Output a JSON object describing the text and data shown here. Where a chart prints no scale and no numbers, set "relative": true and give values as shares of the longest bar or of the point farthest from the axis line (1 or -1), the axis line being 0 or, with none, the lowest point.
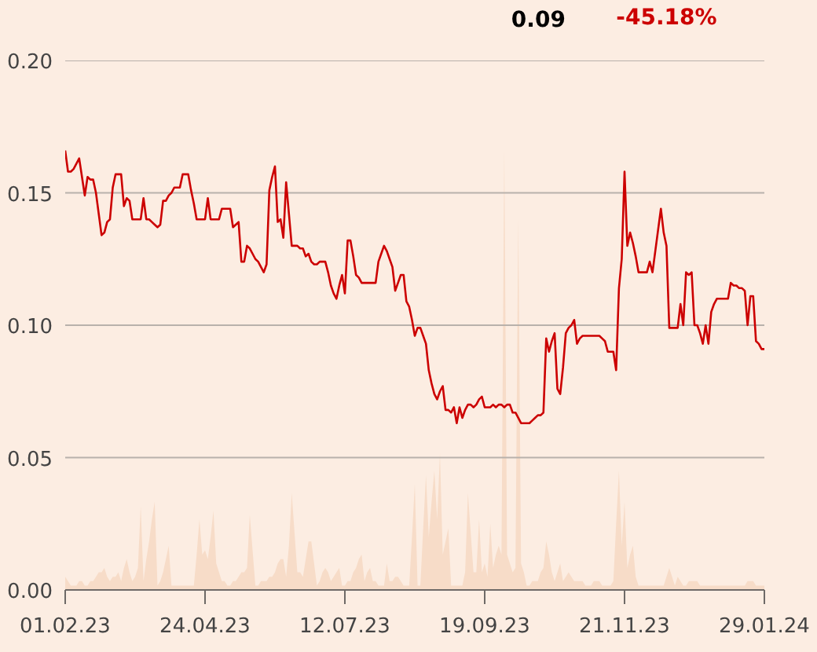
{
  "chart_data": [
    {
      "type": "line",
      "annotations": [
        "0.09",
        "-45.18%"
      ],
      "categories": [
        "01.02.23",
        null,
        null,
        null,
        null,
        null,
        null,
        null,
        null,
        null,
        null,
        null,
        null,
        null,
        null,
        null,
        null,
        null,
        null,
        null,
        null,
        null,
        null,
        null,
        null,
        null,
        null,
        null,
        null,
        null,
        null,
        null,
        null,
        null,
        null,
        null,
        null,
        null,
        null,
        null,
        null,
        null,
        null,
        null,
        null,
        null,
        null,
        null,
        null,
        null,
        "24.04.23",
        null,
        null,
        null,
        null,
        null,
        null,
        null,
        null,
        null,
        null,
        null,
        null,
        null,
        null,
        null,
        null,
        null,
        null,
        null,
        null,
        null,
        null,
        null,
        null,
        null,
        null,
        null,
        null,
        null,
        null,
        null,
        null,
        null,
        null,
        null,
        null,
        null,
        null,
        null,
        null,
        null,
        null,
        null,
        null,
        null,
        null,
        null,
        null,
        null,
        "12.07.23",
        null,
        null,
        null,
        null,
        null,
        null,
        null,
        null,
        null,
        null,
        null,
        null,
        null,
        null,
        null,
        null,
        null,
        null,
        null,
        null,
        null,
        null,
        null,
        null,
        null,
        null,
        null,
        null,
        null,
        null,
        null,
        null,
        null,
        null,
        null,
        null,
        null,
        null,
        null,
        null,
        null,
        null,
        null,
        null,
        null,
        null,
        null,
        null,
        null,
        "19.09.23",
        null,
        null,
        null,
        null,
        null,
        null,
        null,
        null,
        null,
        null,
        null,
        null,
        null,
        null,
        null,
        null,
        null,
        null,
        null,
        null,
        null,
        null,
        null,
        null,
        null,
        null,
        null,
        null,
        null,
        null,
        null,
        null,
        null,
        null,
        null,
        null,
        null,
        null,
        null,
        null,
        null,
        null,
        null,
        null,
        null,
        null,
        null,
        null,
        null,
        "21.11.23",
        null,
        null,
        null,
        null,
        null,
        null,
        null,
        null,
        null,
        null,
        null,
        null,
        null,
        null,
        null,
        null,
        null,
        null,
        null,
        null,
        null,
        null,
        null,
        null,
        null,
        null,
        null,
        null,
        null,
        null,
        null,
        null,
        null,
        null,
        null,
        null,
        null,
        null,
        null,
        null,
        null,
        null,
        null,
        null,
        null,
        null,
        null,
        null,
        null,
        "29.01.24"
      ],
      "ylim": [
        0,
        0.2
      ],
      "yticks": [
        {
          "value": 0,
          "label": "0.00"
        },
        {
          "value": 0.05,
          "label": "0.05"
        },
        {
          "value": 0.1,
          "label": "0.10"
        },
        {
          "value": 0.15,
          "label": "0.15"
        },
        {
          "value": 0.2,
          "label": "0.20"
        }
      ],
      "grid": "y",
      "series": [
        {
          "color": "#cc0000",
          "values": [
            0.166,
            0.158,
            0.158,
            0.159,
            0.161,
            0.163,
            0.156,
            0.149,
            0.156,
            0.155,
            0.155,
            0.15,
            0.142,
            0.134,
            0.135,
            0.139,
            0.14,
            0.152,
            0.157,
            0.157,
            0.157,
            0.145,
            0.148,
            0.147,
            0.14,
            0.14,
            0.14,
            0.14,
            0.148,
            0.14,
            0.14,
            0.139,
            0.138,
            0.137,
            0.138,
            0.147,
            0.147,
            0.149,
            0.15,
            0.152,
            0.152,
            0.152,
            0.157,
            0.157,
            0.157,
            0.151,
            0.146,
            0.14,
            0.14,
            0.14,
            0.14,
            0.148,
            0.14,
            0.14,
            0.14,
            0.14,
            0.144,
            0.144,
            0.144,
            0.144,
            0.137,
            0.138,
            0.139,
            0.124,
            0.124,
            0.13,
            0.129,
            0.127,
            0.125,
            0.124,
            0.122,
            0.12,
            0.123,
            0.151,
            0.156,
            0.16,
            0.139,
            0.14,
            0.133,
            0.154,
            0.142,
            0.13,
            0.13,
            0.13,
            0.129,
            0.129,
            0.126,
            0.127,
            0.124,
            0.123,
            0.123,
            0.124,
            0.124,
            0.124,
            0.12,
            0.115,
            0.112,
            0.11,
            0.115,
            0.119,
            0.112,
            0.132,
            0.132,
            0.126,
            0.119,
            0.118,
            0.116,
            0.116,
            0.116,
            0.116,
            0.116,
            0.116,
            0.124,
            0.127,
            0.13,
            0.128,
            0.125,
            0.122,
            0.113,
            0.116,
            0.119,
            0.119,
            0.109,
            0.107,
            0.102,
            0.096,
            0.099,
            0.099,
            0.096,
            0.093,
            0.083,
            0.078,
            0.074,
            0.072,
            0.075,
            0.077,
            0.068,
            0.068,
            0.067,
            0.069,
            0.063,
            0.069,
            0.065,
            0.068,
            0.07,
            0.07,
            0.069,
            0.07,
            0.072,
            0.073,
            0.069,
            0.069,
            0.069,
            0.07,
            0.069,
            0.07,
            0.07,
            0.069,
            0.07,
            0.07,
            0.067,
            0.067,
            0.065,
            0.063,
            0.063,
            0.063,
            0.063,
            0.064,
            0.065,
            0.066,
            0.066,
            0.067,
            0.095,
            0.09,
            0.094,
            0.097,
            0.076,
            0.074,
            0.084,
            0.097,
            0.099,
            0.1,
            0.102,
            0.093,
            0.095,
            0.096,
            0.096,
            0.096,
            0.096,
            0.096,
            0.096,
            0.096,
            0.095,
            0.094,
            0.09,
            0.09,
            0.09,
            0.083,
            0.114,
            0.125,
            0.158,
            0.13,
            0.135,
            0.131,
            0.126,
            0.12,
            0.12,
            0.12,
            0.12,
            0.124,
            0.12,
            0.128,
            0.136,
            0.144,
            0.135,
            0.13,
            0.099,
            0.099,
            0.099,
            0.099,
            0.108,
            0.1,
            0.12,
            0.119,
            0.12,
            0.1,
            0.1,
            0.097,
            0.093,
            0.1,
            0.093,
            0.105,
            0.108,
            0.11,
            0.11,
            0.11,
            0.11,
            0.11,
            0.116,
            0.115,
            0.115,
            0.114,
            0.114,
            0.113,
            0.1,
            0.111,
            0.111,
            0.094,
            0.093,
            0.091,
            0.091
          ]
        }
      ]
    },
    {
      "type": "area",
      "relative": true,
      "tick_labels": false,
      "categories": [
        "01.02.23",
        null,
        null,
        null,
        null,
        null,
        null,
        null,
        null,
        null,
        null,
        null,
        null,
        null,
        null,
        null,
        null,
        null,
        null,
        null,
        null,
        null,
        null,
        null,
        null,
        null,
        null,
        null,
        null,
        null,
        null,
        null,
        null,
        null,
        null,
        null,
        null,
        null,
        null,
        null,
        null,
        null,
        null,
        null,
        null,
        null,
        null,
        null,
        null,
        null,
        "24.04.23",
        null,
        null,
        null,
        null,
        null,
        null,
        null,
        null,
        null,
        null,
        null,
        null,
        null,
        null,
        null,
        null,
        null,
        null,
        null,
        null,
        null,
        null,
        null,
        null,
        null,
        null,
        null,
        null,
        null,
        null,
        null,
        null,
        null,
        null,
        null,
        null,
        null,
        null,
        null,
        null,
        null,
        null,
        null,
        null,
        null,
        null,
        null,
        null,
        null,
        "12.07.23",
        null,
        null,
        null,
        null,
        null,
        null,
        null,
        null,
        null,
        null,
        null,
        null,
        null,
        null,
        null,
        null,
        null,
        null,
        null,
        null,
        null,
        null,
        null,
        null,
        null,
        null,
        null,
        null,
        null,
        null,
        null,
        null,
        null,
        null,
        null,
        null,
        null,
        null,
        null,
        null,
        null,
        null,
        null,
        null,
        null,
        null,
        null,
        null,
        null,
        "19.09.23",
        null,
        null,
        null,
        null,
        null,
        null,
        null,
        null,
        null,
        null,
        null,
        null,
        null,
        null,
        null,
        null,
        null,
        null,
        null,
        null,
        null,
        null,
        null,
        null,
        null,
        null,
        null,
        null,
        null,
        null,
        null,
        null,
        null,
        null,
        null,
        null,
        null,
        null,
        null,
        null,
        null,
        null,
        null,
        null,
        null,
        null,
        null,
        null,
        null,
        "21.11.23",
        null,
        null,
        null,
        null,
        null,
        null,
        null,
        null,
        null,
        null,
        null,
        null,
        null,
        null,
        null,
        null,
        null,
        null,
        null,
        null,
        null,
        null,
        null,
        null,
        null,
        null,
        null,
        null,
        null,
        null,
        null,
        null,
        null,
        null,
        null,
        null,
        null,
        null,
        null,
        null,
        null,
        null,
        null,
        null,
        null,
        null,
        null,
        null,
        null,
        "29.01.24"
      ],
      "series": [
        {
          "color": "#f7dcc8",
          "values": [
            0.03,
            0.02,
            0.01,
            0.01,
            0.01,
            0.02,
            0.02,
            0.01,
            0.01,
            0.02,
            0.02,
            0.03,
            0.04,
            0.04,
            0.05,
            0.03,
            0.02,
            0.03,
            0.03,
            0.04,
            0.02,
            0.05,
            0.07,
            0.04,
            0.02,
            0.03,
            0.05,
            0.19,
            0.02,
            0.07,
            0.11,
            0.16,
            0.2,
            0.01,
            0.02,
            0.04,
            0.07,
            0.1,
            0.01,
            0.01,
            0.01,
            0.01,
            0.01,
            0.01,
            0.01,
            0.01,
            0.01,
            0.08,
            0.16,
            0.08,
            0.09,
            0.07,
            0.12,
            0.18,
            0.06,
            0.04,
            0.02,
            0.02,
            0.01,
            0.01,
            0.02,
            0.02,
            0.03,
            0.04,
            0.04,
            0.05,
            0.17,
            0.09,
            0.01,
            0.01,
            0.02,
            0.02,
            0.02,
            0.03,
            0.03,
            0.04,
            0.06,
            0.07,
            0.07,
            0.03,
            0.1,
            0.22,
            0.13,
            0.04,
            0.04,
            0.03,
            0.07,
            0.11,
            0.11,
            0.06,
            0.01,
            0.02,
            0.04,
            0.05,
            0.04,
            0.02,
            0.03,
            0.04,
            0.05,
            0.01,
            0.01,
            0.02,
            0.02,
            0.04,
            0.05,
            0.07,
            0.08,
            0.02,
            0.04,
            0.05,
            0.02,
            0.02,
            0.01,
            0.01,
            0.01,
            0.06,
            0.02,
            0.02,
            0.03,
            0.03,
            0.02,
            0.01,
            0.01,
            0.01,
            0.12,
            0.24,
            0.01,
            0.01,
            0.14,
            0.26,
            0.12,
            0.2,
            0.27,
            0.16,
            0.31,
            0.08,
            0.11,
            0.14,
            0.01,
            0.01,
            0.01,
            0.01,
            0.01,
            0.04,
            0.22,
            0.13,
            0.04,
            0.04,
            0.16,
            0.04,
            0.06,
            0.03,
            0.15,
            0.05,
            0.08,
            0.1,
            0.08,
            1.0,
            0.08,
            0.06,
            0.04,
            0.05,
            0.84,
            0.06,
            0.04,
            0.01,
            0.01,
            0.02,
            0.02,
            0.02,
            0.04,
            0.05,
            0.11,
            0.08,
            0.04,
            0.02,
            0.04,
            0.06,
            0.02,
            0.03,
            0.04,
            0.03,
            0.02,
            0.02,
            0.02,
            0.02,
            0.01,
            0.01,
            0.01,
            0.02,
            0.02,
            0.02,
            0.01,
            0.01,
            0.01,
            0.01,
            0.02,
            0.15,
            0.27,
            0.1,
            0.2,
            0.05,
            0.08,
            0.1,
            0.03,
            0.01,
            0.01,
            0.01,
            0.01,
            0.01,
            0.01,
            0.01,
            0.01,
            0.01,
            0.01,
            0.03,
            0.05,
            0.03,
            0.01,
            0.03,
            0.02,
            0.01,
            0.01,
            0.02,
            0.02,
            0.02,
            0.02,
            0.01,
            0.01,
            0.01,
            0.01,
            0.01,
            0.01,
            0.01,
            0.01,
            0.01,
            0.01,
            0.01,
            0.01,
            0.01,
            0.01,
            0.01,
            0.01,
            0.01,
            0.02,
            0.02,
            0.02,
            0.01,
            0.01,
            0.01,
            0.01
          ]
        }
      ]
    }
  ]
}
